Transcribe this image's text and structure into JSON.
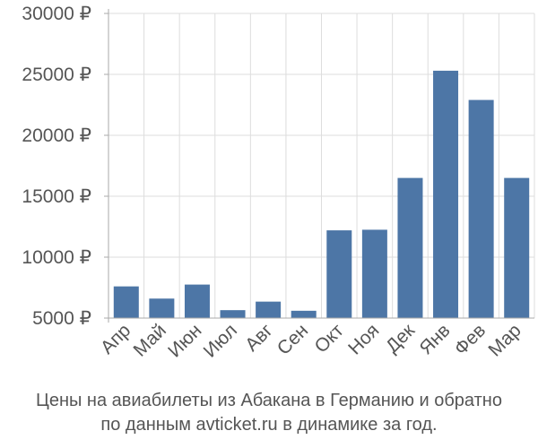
{
  "chart_data": {
    "type": "bar",
    "categories": [
      "Апр",
      "Май",
      "Июн",
      "Июл",
      "Авг",
      "Сен",
      "Окт",
      "Ноя",
      "Дек",
      "Янв",
      "Фев",
      "Мар"
    ],
    "values": [
      7600,
      6600,
      7750,
      5650,
      6350,
      5600,
      12200,
      12250,
      16500,
      25300,
      22900,
      16500
    ],
    "yticks": [
      "5000 ₽",
      "10000 ₽",
      "15000 ₽",
      "20000 ₽",
      "25000 ₽",
      "30000 ₽"
    ],
    "ytick_values": [
      5000,
      10000,
      15000,
      20000,
      25000,
      30000
    ],
    "ylim": [
      5000,
      30000
    ],
    "grid": true,
    "bar_color": "#4d76a6",
    "grid_color": "#dddddd",
    "axis_color": "#aaaaaa"
  },
  "caption": {
    "line1": "Цены на авиабилеты из Абакана в Германию и обратно",
    "line2": "по данным avticket.ru в динамике за год."
  }
}
